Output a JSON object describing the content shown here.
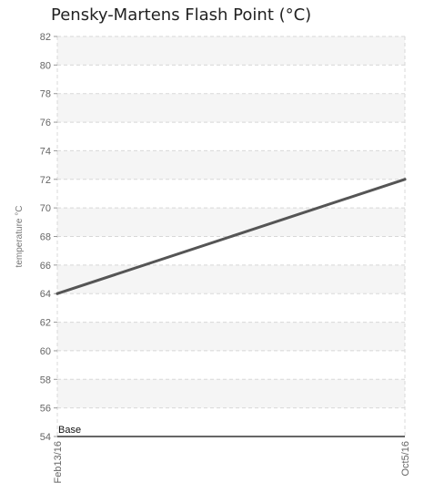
{
  "chart_data": {
    "type": "line",
    "title": "Pensky-Martens Flash Point (°C)",
    "ylabel": "temperature °C",
    "xlabel": "",
    "categories": [
      "Feb13/16",
      "Oct5/16"
    ],
    "series": [
      {
        "values": [
          64,
          72
        ],
        "color": "#555555"
      }
    ],
    "ylim": [
      54,
      82
    ],
    "yticks": [
      54,
      56,
      58,
      60,
      62,
      64,
      66,
      68,
      70,
      72,
      74,
      76,
      78,
      80,
      82
    ],
    "grid": true,
    "annotations": [
      {
        "text": "Base",
        "y": 54
      }
    ]
  }
}
